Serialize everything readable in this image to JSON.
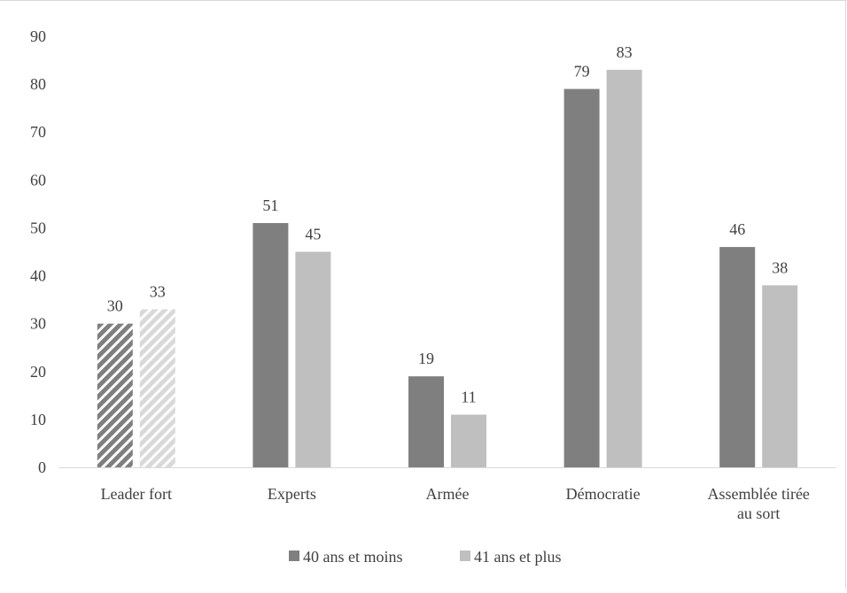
{
  "chart_data": {
    "type": "bar",
    "categories": [
      "Leader fort",
      "Experts",
      "Armée",
      "Démocratie",
      "Assemblée tirée au sort"
    ],
    "series": [
      {
        "name": "40 ans et moins",
        "values": [
          30,
          51,
          19,
          79,
          46
        ],
        "color": "#7f7f7f"
      },
      {
        "name": "41 ans et plus",
        "values": [
          33,
          45,
          11,
          83,
          38
        ],
        "color": "#bfbfbf"
      }
    ],
    "y_ticks": [
      "0",
      "10",
      "20",
      "30",
      "40",
      "50",
      "60",
      "70",
      "80",
      "90"
    ],
    "ylim": [
      0,
      90
    ],
    "title": "",
    "xlabel": "",
    "ylabel": "",
    "grid": false,
    "legend_position": "bottom",
    "hatched_category": "Leader fort"
  }
}
